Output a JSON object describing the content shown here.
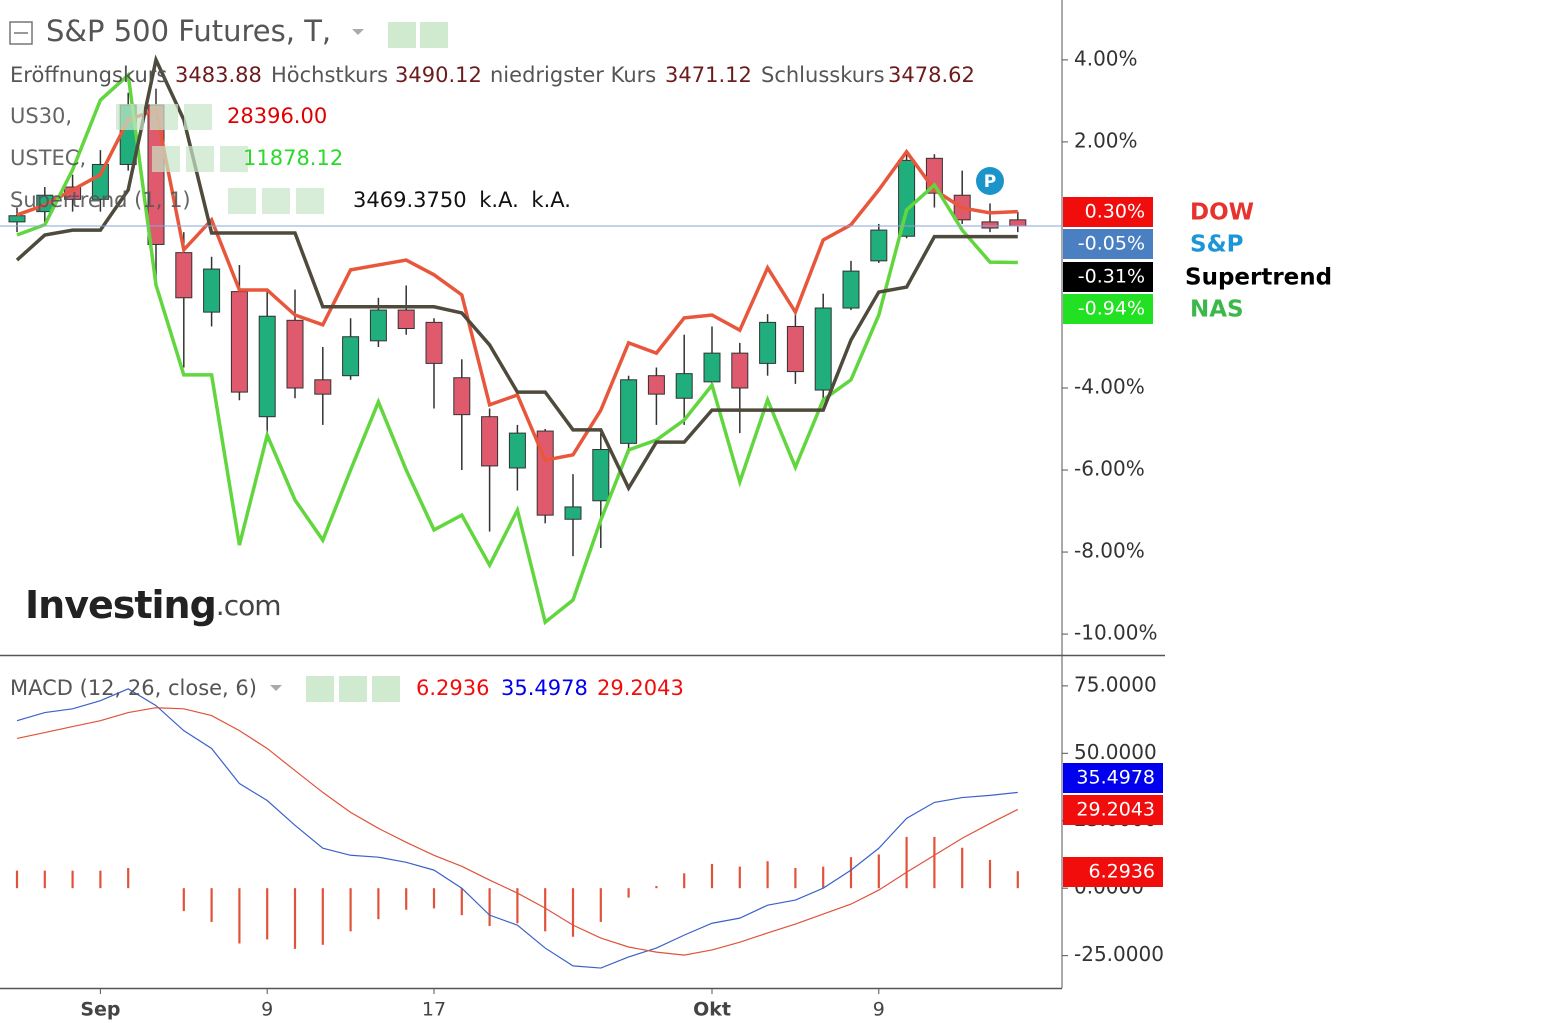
{
  "chart_data": [
    {
      "type": "candlestick",
      "title": "S&P 500 Futures, T,",
      "ohlc_legend": [
        {
          "name": "Eröffnungskurs",
          "value": "3483.88"
        },
        {
          "name": "Höchstkurs",
          "value": "3490.12"
        },
        {
          "name": "niedrigster Kurs",
          "value": "3471.12"
        },
        {
          "name": "Schlusskurs",
          "value": "3478.62"
        }
      ],
      "studies": [
        {
          "name": "US30,",
          "value": "28396.00",
          "color": "#e00000"
        },
        {
          "name": "USTEC,",
          "value": "11878.12",
          "color": "#2bd92b"
        },
        {
          "name": "Supertrend (1, 1)",
          "value": "3469.3750 k.A. k.A.",
          "color": "#111111"
        }
      ],
      "categories": [
        null,
        null,
        null,
        "Sep",
        null,
        null,
        null,
        null,
        null,
        "9",
        null,
        null,
        null,
        null,
        null,
        "17",
        null,
        null,
        null,
        null,
        null,
        null,
        null,
        null,
        null,
        "Okt",
        null,
        null,
        null,
        null,
        null,
        "9",
        null,
        null,
        null,
        null,
        null
      ],
      "open": [
        0.05,
        0.3,
        0.9,
        0.6,
        1.45,
        2.9,
        -0.7,
        -2.15,
        -1.65,
        -4.7,
        -2.35,
        -3.8,
        -3.7,
        -2.85,
        -2.1,
        -2.4,
        -3.75,
        -4.7,
        -5.95,
        -5.05,
        -7.2,
        -6.75,
        -5.35,
        -3.7,
        -4.25,
        -3.85,
        -3.15,
        -3.4,
        -2.5,
        -4.05,
        -2.05,
        -0.9,
        -0.3,
        1.6,
        0.7,
        0.05,
        0.1
      ],
      "high": [
        0.4,
        0.9,
        1.2,
        1.8,
        3.2,
        3.3,
        -0.2,
        -0.8,
        -1.0,
        -1.6,
        -1.6,
        -3.0,
        -2.3,
        -1.8,
        -1.5,
        -2.3,
        -3.3,
        -4.5,
        -4.9,
        -5.0,
        -6.1,
        -5.1,
        -3.7,
        -3.5,
        -2.7,
        -2.5,
        -2.9,
        -2.2,
        -2.2,
        -1.7,
        -0.9,
        0.0,
        1.8,
        1.7,
        1.3,
        0.5,
        0.3
      ],
      "low": [
        -0.2,
        0.0,
        0.3,
        0.3,
        1.3,
        -1.5,
        -3.5,
        -2.5,
        -4.3,
        -5.3,
        -4.25,
        -4.9,
        -3.8,
        -3.0,
        -2.7,
        -4.5,
        -6.0,
        -7.5,
        -6.5,
        -7.3,
        -8.1,
        -7.9,
        -5.6,
        -4.9,
        -4.9,
        -4.0,
        -5.1,
        -3.7,
        -3.9,
        -4.3,
        -2.1,
        -0.95,
        -0.35,
        0.4,
        0.0,
        -0.2,
        -0.2
      ],
      "close": [
        0.2,
        0.7,
        0.6,
        1.45,
        2.9,
        -0.5,
        -1.8,
        -1.1,
        -4.1,
        -2.25,
        -4.0,
        -4.15,
        -2.75,
        -2.1,
        -2.55,
        -3.4,
        -4.65,
        -5.9,
        -5.1,
        -7.1,
        -6.9,
        -5.5,
        -3.8,
        -4.15,
        -3.65,
        -3.15,
        -4.0,
        -2.4,
        -3.6,
        -2.05,
        -1.15,
        -0.15,
        1.55,
        0.75,
        0.1,
        -0.1,
        -0.05
      ],
      "up_color": "#1fae7c",
      "down_color": "#e05a6e",
      "series": [
        {
          "color": "#e8573c",
          "values": [
            0.22,
            0.46,
            0.83,
            1.2,
            2.54,
            2.78,
            -0.63,
            0.1,
            -1.61,
            -1.61,
            -2.22,
            -2.46,
            -1.12,
            -1.0,
            -0.88,
            -1.24,
            -1.73,
            -4.41,
            -4.17,
            -5.76,
            -5.63,
            -4.54,
            -2.9,
            -3.15,
            -2.29,
            -2.22,
            -2.59,
            -1.07,
            -2.15,
            -0.39,
            -0.02,
            0.83,
            1.76,
            0.83,
            0.39,
            0.27,
            0.3
          ]
        },
        {
          "color": "#62d63e",
          "values": [
            -0.27,
            -0.02,
            1.32,
            3.02,
            3.63,
            -1.49,
            -3.68,
            -3.68,
            -7.83,
            -5.15,
            -6.73,
            -7.71,
            -6.0,
            -4.34,
            -6.0,
            -7.46,
            -7.1,
            -8.32,
            -6.98,
            -9.71,
            -9.17,
            -7.22,
            -5.51,
            -5.27,
            -4.78,
            -3.93,
            -6.29,
            -4.29,
            -5.93,
            -4.29,
            -3.8,
            -2.22,
            0.34,
            0.95,
            -0.15,
            -0.93,
            -0.94
          ]
        },
        {
          "color": "#4e4a3c",
          "values": [
            -0.88,
            -0.27,
            -0.15,
            -0.15,
            0.83,
            4.0,
            2.54,
            -0.22,
            -0.22,
            -0.22,
            -0.22,
            -2.02,
            -2.02,
            -2.02,
            -2.02,
            -2.02,
            -2.17,
            -2.95,
            -4.1,
            -4.1,
            -5.02,
            -5.02,
            -6.44,
            -5.32,
            -5.32,
            -4.54,
            -4.54,
            -4.54,
            -4.54,
            -4.54,
            -2.83,
            -1.66,
            -1.54,
            -0.31,
            -0.31,
            -0.31,
            -0.31
          ]
        }
      ],
      "badges": [
        {
          "name": "DOW",
          "value": 0.3,
          "label": "0.30%",
          "color": "#f20d0d",
          "name_color": "#e8322d"
        },
        {
          "name": "S&P",
          "value": -0.05,
          "label": "-0.05%",
          "color": "#4a80c2",
          "name_color": "#1c96d6"
        },
        {
          "name": "Supertrend",
          "value": -0.31,
          "label": "-0.31%",
          "color": "#000000",
          "name_color": "#000000"
        },
        {
          "name": "NAS",
          "value": -0.94,
          "label": "-0.94%",
          "color": "#22e022",
          "name_color": "#3cb84a"
        }
      ],
      "ylim": [
        -10.51,
        5.46
      ],
      "yticks": [
        {
          "value": 4,
          "label": "4.00%"
        },
        {
          "value": 2,
          "label": "2.00%"
        },
        {
          "value": -4,
          "label": "-4.00%"
        },
        {
          "value": -6,
          "label": "-6.00%"
        },
        {
          "value": -8,
          "label": "-8.00%"
        },
        {
          "value": -10,
          "label": "-10.00%"
        }
      ],
      "watermark": "Investing",
      "watermark_suffix": ".com",
      "marker": "P"
    },
    {
      "type": "macd",
      "title": "MACD (12, 26, close, 6)",
      "series": [
        {
          "color": "#3b62c9",
          "values": [
            62.1,
            65.1,
            66.5,
            69.5,
            73.9,
            67.7,
            58.4,
            51.8,
            38.8,
            32.5,
            23.3,
            14.8,
            12.2,
            11.5,
            9.6,
            6.7,
            0,
            -10.0,
            -13.7,
            -22.2,
            -28.8,
            -29.6,
            -25.5,
            -22.2,
            -17.4,
            -13.0,
            -11.1,
            -6.3,
            -4.4,
            0,
            6.7,
            14.8,
            25.9,
            31.8,
            33.6,
            34.4,
            35.4978
          ],
          "badge_color": "#0000ee"
        },
        {
          "color": "#e0533a",
          "values": [
            55.5,
            57.7,
            59.9,
            62.1,
            65.1,
            66.9,
            66.5,
            64.0,
            58.4,
            51.8,
            43.6,
            35.5,
            28.1,
            22.2,
            17.0,
            12.2,
            8.1,
            3.0,
            -1.8,
            -7.4,
            -13.7,
            -18.5,
            -21.8,
            -23.7,
            -24.8,
            -22.9,
            -20.0,
            -16.6,
            -13.3,
            -9.6,
            -5.9,
            -0.7,
            5.9,
            12.2,
            18.5,
            24.0,
            29.2043
          ],
          "badge_color": "#f20d0d"
        }
      ],
      "histogram": {
        "color": "#e0533a",
        "values": [
          6.5,
          6.5,
          6.5,
          6.5,
          7.5,
          0,
          -8.5,
          -12.5,
          -20.5,
          -19,
          -22.5,
          -21,
          -16,
          -11.5,
          -8,
          -7.5,
          -10,
          -14,
          -13,
          -16,
          -18,
          -12.5,
          -3.5,
          0.8,
          5.5,
          9,
          8,
          10,
          7.5,
          8,
          11.5,
          12.5,
          19,
          19,
          15,
          10.5,
          6.2936
        ],
        "badge_color": "#f20d0d"
      },
      "ylim": [
        -37,
        85.7
      ],
      "yticks": [
        {
          "value": 75,
          "label": "75.0000"
        },
        {
          "value": 50,
          "label": "50.0000"
        },
        {
          "value": 25,
          "label": "25.0000"
        },
        {
          "value": 0,
          "label": "0.0000"
        },
        {
          "value": -25,
          "label": "-25.0000"
        }
      ]
    }
  ]
}
